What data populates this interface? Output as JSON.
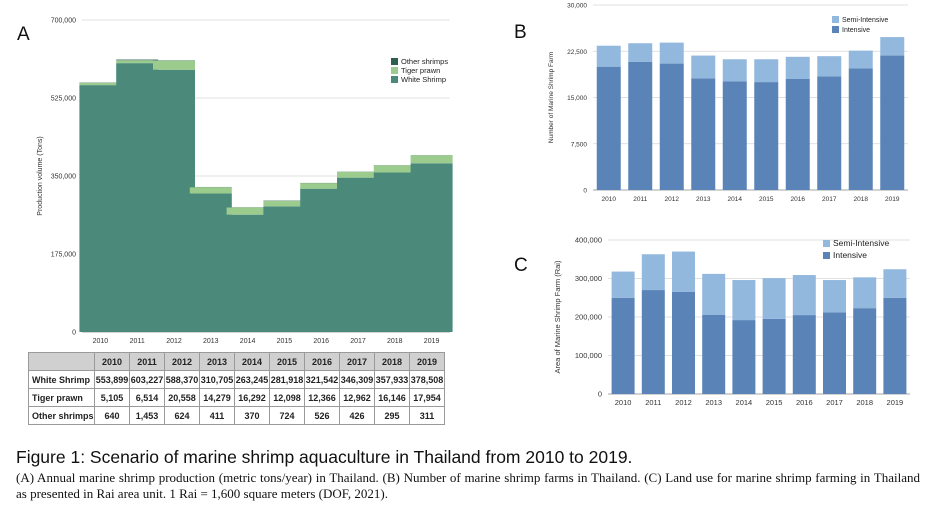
{
  "chart_data": [
    {
      "panel": "A",
      "type": "bar",
      "stacked": true,
      "categories": [
        "2010",
        "2011",
        "2012",
        "2013",
        "2014",
        "2015",
        "2016",
        "2017",
        "2018",
        "2019"
      ],
      "series": [
        {
          "name": "White Shrimp",
          "color": "#4b8a7b",
          "values": [
            553899,
            603227,
            588370,
            310705,
            263245,
            281918,
            321542,
            346309,
            357933,
            378508
          ]
        },
        {
          "name": "Tiger prawn",
          "color": "#9ccb8e",
          "values": [
            5105,
            6514,
            20558,
            14279,
            16292,
            12098,
            12366,
            12962,
            16146,
            17954
          ]
        },
        {
          "name": "Other shrimps",
          "color": "#2e5e50",
          "values": [
            640,
            1453,
            624,
            411,
            370,
            724,
            526,
            426,
            295,
            311
          ]
        }
      ],
      "legend_order": [
        "Other shrimps",
        "Tiger prawn",
        "White Shrimp"
      ],
      "ylabel": "Production volume (Tons)",
      "ylim": [
        0,
        700000
      ],
      "yticks": [
        0,
        175000,
        350000,
        525000,
        700000
      ],
      "ytick_labels": [
        "0",
        "175,000",
        "350,000",
        "525,000",
        "700,000"
      ],
      "grid": true,
      "legend": "top-right"
    },
    {
      "panel": "B",
      "type": "bar",
      "stacked": true,
      "categories": [
        "2010",
        "2011",
        "2012",
        "2013",
        "2014",
        "2015",
        "2016",
        "2017",
        "2018",
        "2019"
      ],
      "series": [
        {
          "name": "Intensive",
          "color": "#5a84b7",
          "values": [
            20000,
            20800,
            20500,
            18100,
            17600,
            17500,
            18000,
            18400,
            19700,
            21800
          ]
        },
        {
          "name": "Semi-Intensive",
          "color": "#93b8de",
          "values": [
            3400,
            3000,
            3400,
            3700,
            3600,
            3700,
            3600,
            3300,
            2900,
            3000
          ]
        }
      ],
      "legend_order": [
        "Semi-Intensive",
        "Intensive"
      ],
      "ylabel": "Number of Marine Shrimp Farm",
      "ylim": [
        0,
        30000
      ],
      "yticks": [
        0,
        7500,
        15000,
        22500,
        30000
      ],
      "ytick_labels": [
        "0",
        "7,500",
        "15,000",
        "22,500",
        "30,000"
      ],
      "grid": true,
      "legend": "top-right"
    },
    {
      "panel": "C",
      "type": "bar",
      "stacked": true,
      "categories": [
        "2010",
        "2011",
        "2012",
        "2013",
        "2014",
        "2015",
        "2016",
        "2017",
        "2018",
        "2019"
      ],
      "series": [
        {
          "name": "Intensive",
          "color": "#5a84b7",
          "values": [
            250000,
            270000,
            265000,
            206000,
            192000,
            195000,
            205000,
            212000,
            223000,
            250000
          ]
        },
        {
          "name": "Semi-Intensive",
          "color": "#93b8de",
          "values": [
            68000,
            93000,
            105000,
            106000,
            104000,
            106000,
            104000,
            84000,
            80000,
            74000
          ]
        }
      ],
      "legend_order": [
        "Semi-Intensive",
        "Intensive"
      ],
      "ylabel": "Area of Marine Shrimp Farm (Rai)",
      "ylim": [
        0,
        400000
      ],
      "yticks": [
        0,
        100000,
        200000,
        300000,
        400000
      ],
      "ytick_labels": [
        "0",
        "100,000",
        "200,000",
        "300,000",
        "400,000"
      ],
      "grid": true,
      "legend": "top-right"
    }
  ],
  "panel_letters": {
    "a": "A",
    "b": "B",
    "c": "C"
  },
  "table": {
    "headers": [
      "2010",
      "2011",
      "2012",
      "2013",
      "2014",
      "2015",
      "2016",
      "2017",
      "2018",
      "2019"
    ],
    "rows": [
      {
        "label": "White Shrimp",
        "values": [
          "553,899",
          "603,227",
          "588,370",
          "310,705",
          "263,245",
          "281,918",
          "321,542",
          "346,309",
          "357,933",
          "378,508"
        ]
      },
      {
        "label": "Tiger prawn",
        "values": [
          "5,105",
          "6,514",
          "20,558",
          "14,279",
          "16,292",
          "12,098",
          "12,366",
          "12,962",
          "16,146",
          "17,954"
        ]
      },
      {
        "label": "Other shrimps",
        "values": [
          "640",
          "1,453",
          "624",
          "411",
          "370",
          "724",
          "526",
          "426",
          "295",
          "311"
        ]
      }
    ]
  },
  "caption": {
    "title": "Figure 1: Scenario of marine shrimp aquaculture in Thailand from 2010 to 2019.",
    "body": "(A) Annual marine shrimp production (metric tons/year) in Thailand. (B) Number of marine shrimp farms in Thailand. (C) Land use for marine shrimp farming in Thailand as presented in Rai area unit. 1 Rai = 1,600 square meters (DOF, 2021)."
  }
}
